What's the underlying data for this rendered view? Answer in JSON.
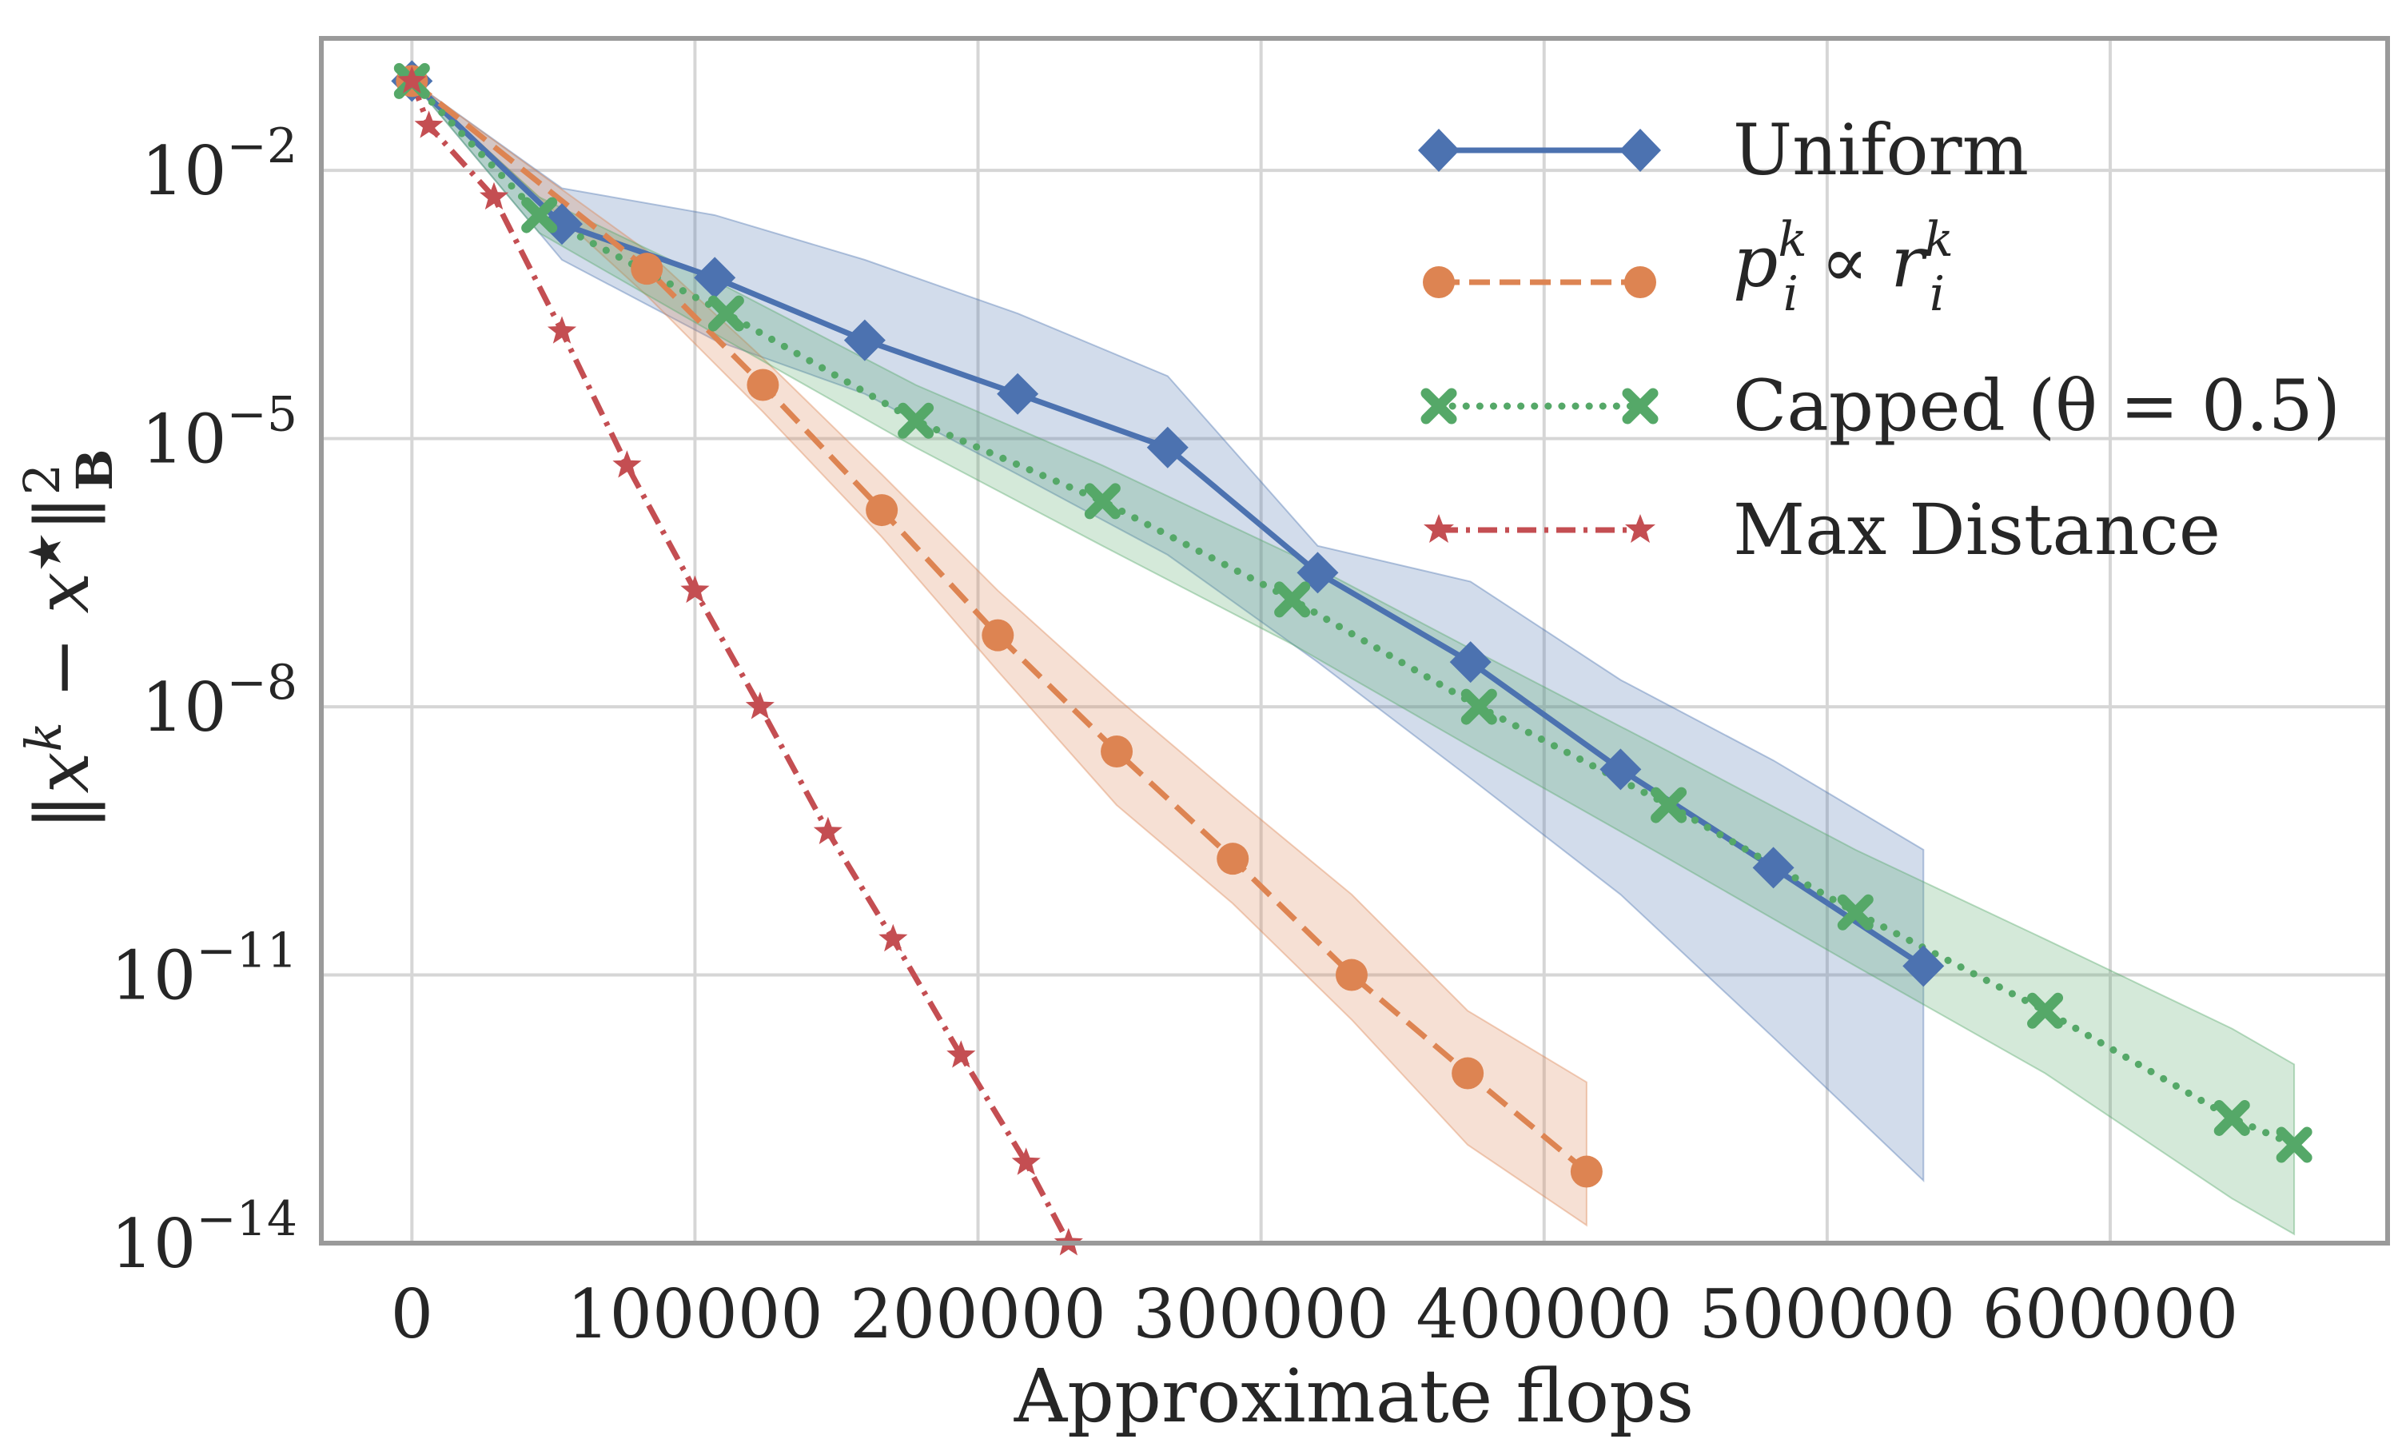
{
  "chart_data": {
    "type": "line",
    "title": "",
    "xlabel": "Approximate flops",
    "ylabel": "‖xᵏ − x★‖²_B",
    "ylabel_parts": {
      "norm": "‖",
      "x1": "x",
      "k": "k",
      "minus": " − ",
      "x2": "x",
      "star": "★",
      "close": "‖",
      "sup": "2",
      "sub": "B"
    },
    "yscale": "log",
    "xlim": [
      -32000,
      698000
    ],
    "ylim": [
      1e-14,
      0.3
    ],
    "grid": true,
    "legend_position": "top-right",
    "x_ticks": [
      0,
      100000,
      200000,
      300000,
      400000,
      500000,
      600000
    ],
    "x_tick_labels": [
      "0",
      "100000",
      "200000",
      "300000",
      "400000",
      "500000",
      "600000"
    ],
    "y_ticks": [
      -2,
      -5,
      -8,
      -11,
      -14
    ],
    "y_tick_base": "10",
    "y_tick_exponents": [
      "−2",
      "−5",
      "−8",
      "−11",
      "−14"
    ],
    "series": [
      {
        "name": "Uniform",
        "color": "#4c72b0",
        "dash": "solid",
        "marker": "diamond",
        "x": [
          0,
          53000,
          107000,
          160000,
          214000,
          267000,
          320000,
          374000,
          427000,
          481000,
          534000
        ],
        "log10_y": [
          -1.0,
          -2.6,
          -3.2,
          -3.9,
          -4.5,
          -5.1,
          -6.5,
          -7.5,
          -8.7,
          -9.8,
          -10.9
        ],
        "band_upper": [
          -1.0,
          -2.2,
          -2.5,
          -3.0,
          -3.6,
          -4.3,
          -6.2,
          -6.6,
          -7.7,
          -8.6,
          -9.6
        ],
        "band_lower": [
          -1.0,
          -3.0,
          -3.9,
          -4.5,
          -5.4,
          -6.3,
          -7.5,
          -8.8,
          -10.1,
          -11.7,
          -13.3
        ]
      },
      {
        "name": "p_i^k ∝ r_i^k",
        "name_parts": {
          "p": "p",
          "i": "i",
          "k": "k",
          "propto": " ∝ ",
          "r": "r"
        },
        "color": "#dd8452",
        "dash": "dashed",
        "marker": "circle",
        "x": [
          0,
          83000,
          124000,
          166000,
          207000,
          249000,
          290000,
          332000,
          373000,
          415000
        ],
        "log10_y": [
          -1.0,
          -3.1,
          -4.4,
          -5.8,
          -7.2,
          -8.5,
          -9.7,
          -11.0,
          -12.1,
          -13.2
        ],
        "band_upper": [
          -1.0,
          -2.9,
          -4.1,
          -5.4,
          -6.7,
          -7.9,
          -9.0,
          -10.1,
          -11.4,
          -12.2
        ],
        "band_lower": [
          -1.0,
          -3.4,
          -4.7,
          -6.1,
          -7.6,
          -9.1,
          -10.2,
          -11.5,
          -12.9,
          -13.8
        ]
      },
      {
        "name": "Capped (θ = 0.5)",
        "color": "#55a868",
        "dash": "dotted",
        "marker": "x",
        "x": [
          0,
          45000,
          111000,
          178000,
          244000,
          311000,
          377000,
          444000,
          510000,
          577000,
          643000,
          665000
        ],
        "log10_y": [
          -1.0,
          -2.5,
          -3.6,
          -4.8,
          -5.7,
          -6.8,
          -8.0,
          -9.1,
          -10.3,
          -11.4,
          -12.6,
          -12.9
        ],
        "band_upper": [
          -1.0,
          -2.3,
          -3.3,
          -4.4,
          -5.3,
          -6.3,
          -7.4,
          -8.5,
          -9.6,
          -10.6,
          -11.6,
          -12.0
        ],
        "band_lower": [
          -1.0,
          -2.7,
          -3.9,
          -5.1,
          -6.2,
          -7.3,
          -8.5,
          -9.7,
          -10.9,
          -12.1,
          -13.5,
          -13.9
        ]
      },
      {
        "name": "Max Distance",
        "color": "#c44e52",
        "dash": "dashdot",
        "marker": "star",
        "x": [
          0,
          6000,
          29000,
          53000,
          76000,
          100000,
          123000,
          147000,
          170000,
          194000,
          217000,
          232000
        ],
        "log10_y": [
          -1.0,
          -1.5,
          -2.3,
          -3.8,
          -5.3,
          -6.7,
          -8.0,
          -9.4,
          -10.6,
          -11.9,
          -13.1,
          -14.0
        ]
      }
    ]
  }
}
